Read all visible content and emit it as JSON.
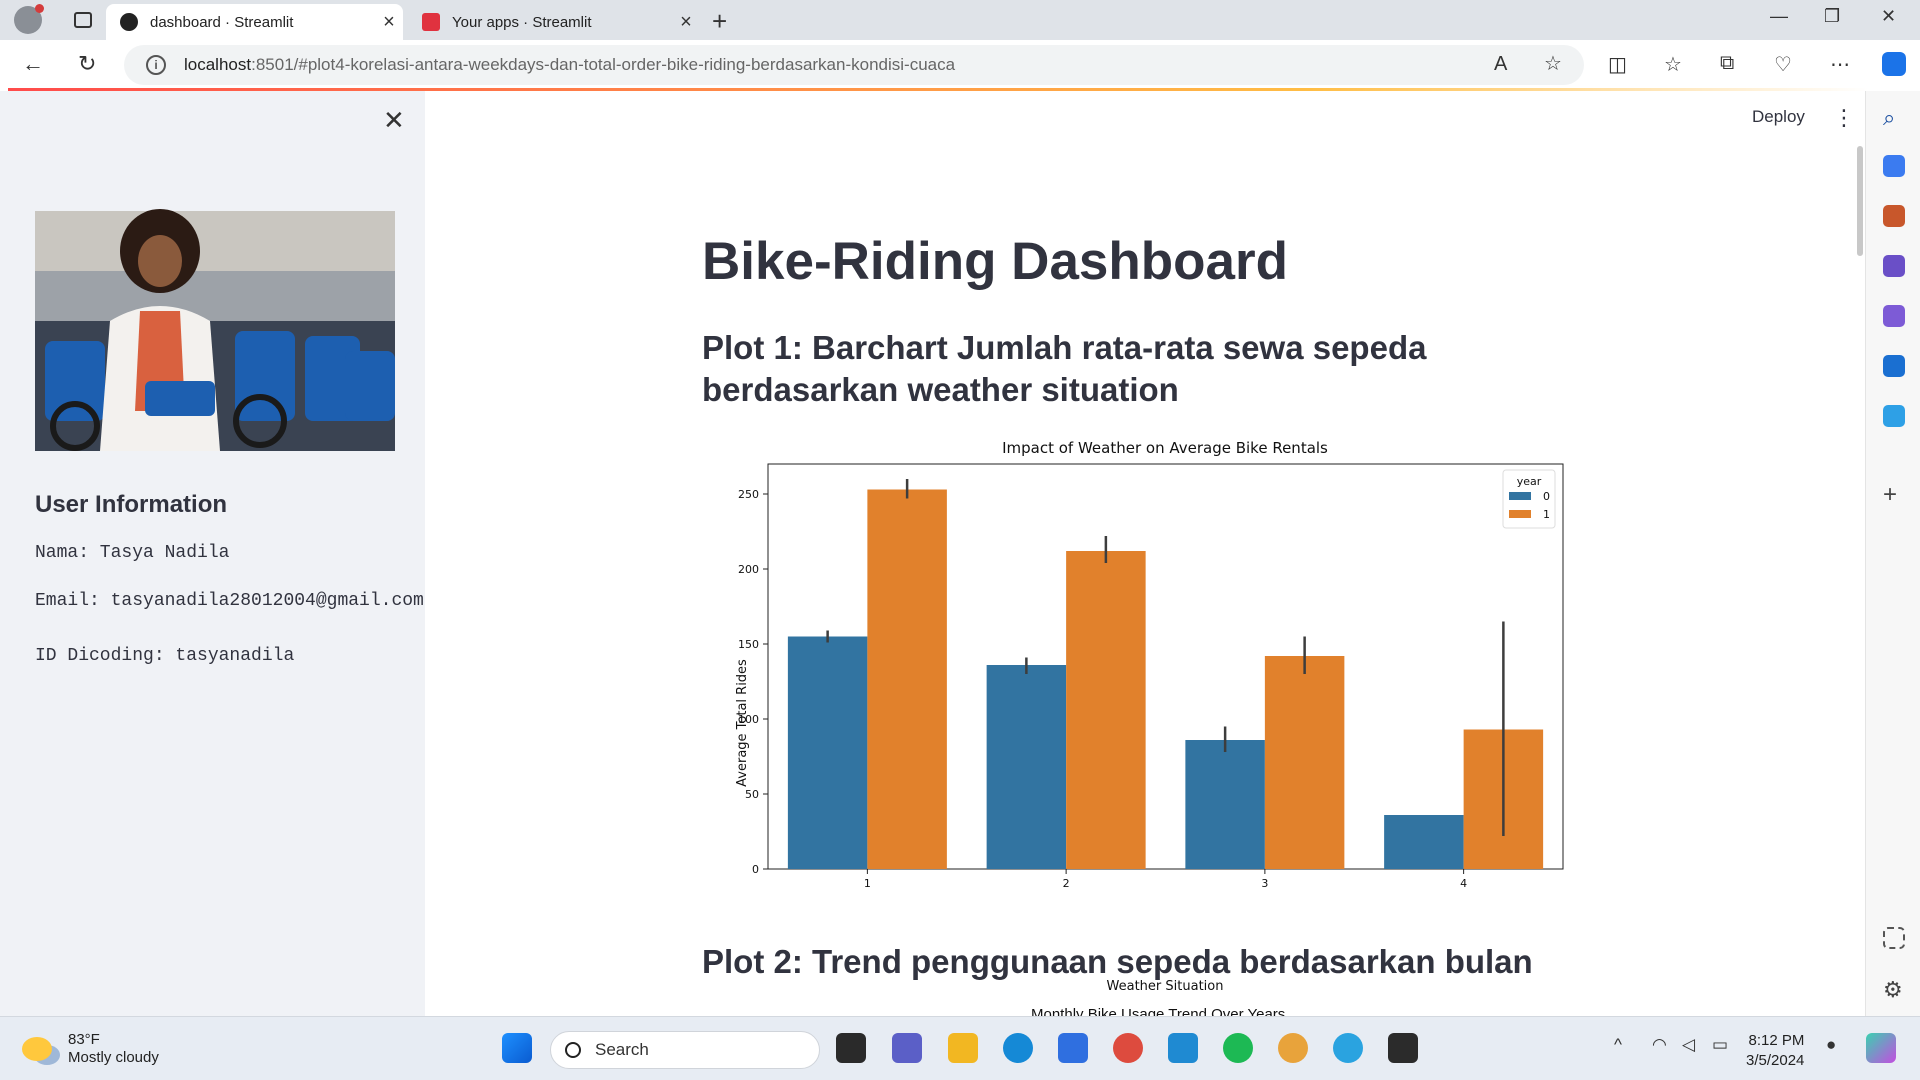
{
  "browser": {
    "tabs": [
      {
        "title": "dashboard · Streamlit",
        "active": true
      },
      {
        "title": "Your apps · Streamlit",
        "active": false
      }
    ],
    "url_host": "localhost",
    "url_rest": ":8501/#plot4-korelasi-antara-weekdays-dan-total-order-bike-riding-berdasarkan-kondisi-cuaca"
  },
  "sidebar": {
    "heading": "User Information",
    "name": "Nama: Tasya Nadila",
    "email": "Email: tasyanadila28012004@gmail.com",
    "dicoding": "ID Dicoding: tasyanadila"
  },
  "header": {
    "deploy_label": "Deploy"
  },
  "main": {
    "title": "Bike-Riding Dashboard",
    "plot1_heading": "Plot 1: Barchart Jumlah rata-rata sewa sepeda berdasarkan weather situation",
    "plot2_heading": "Plot 2: Trend penggunaan sepeda berdasarkan bulan",
    "plot2_chart_title_partial": "Monthly Bike Usage Trend Over Years"
  },
  "chart_data": {
    "type": "bar",
    "title": "Impact of Weather on Average Bike Rentals",
    "xlabel": "Weather Situation",
    "ylabel": "Average Total Rides",
    "categories": [
      "1",
      "2",
      "3",
      "4"
    ],
    "ylim": [
      0,
      270
    ],
    "yticks": [
      0,
      50,
      100,
      150,
      200,
      250
    ],
    "legend_title": "year",
    "legend_position": "top-right",
    "series": [
      {
        "name": "0",
        "color": "#3274a1",
        "values": [
          155,
          136,
          86,
          36
        ],
        "err_low": [
          151,
          130,
          78,
          36
        ],
        "err_high": [
          159,
          141,
          95,
          36
        ]
      },
      {
        "name": "1",
        "color": "#e1812c",
        "values": [
          253,
          212,
          142,
          93
        ],
        "err_low": [
          247,
          204,
          130,
          22
        ],
        "err_high": [
          260,
          222,
          155,
          165
        ]
      }
    ]
  },
  "taskbar": {
    "temp": "83°F",
    "condition": "Mostly cloudy",
    "search_label": "Search",
    "time": "8:12 PM",
    "date": "3/5/2024"
  }
}
